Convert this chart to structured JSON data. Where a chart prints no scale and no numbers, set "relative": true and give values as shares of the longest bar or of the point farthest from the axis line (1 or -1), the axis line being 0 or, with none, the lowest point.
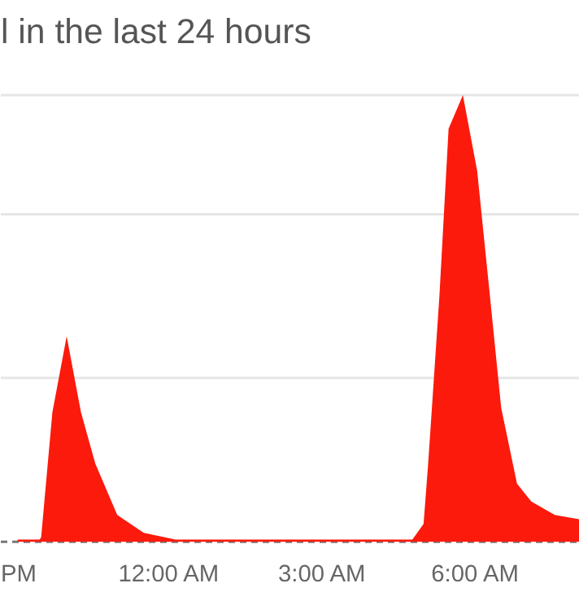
{
  "chart_data": {
    "type": "area",
    "title": "l in the last 24 hours",
    "relative": true,
    "x": [
      -2.97,
      -2.54,
      -2.51,
      -2.29,
      -2.01,
      -1.73,
      -1.45,
      -1.02,
      -0.5,
      0.12,
      4.76,
      4.98,
      5.07,
      5.29,
      5.47,
      5.75,
      6.03,
      6.28,
      6.5,
      6.81,
      7.09,
      7.55,
      8.04
    ],
    "series": [
      {
        "color": "#fc1a0c",
        "values": [
          0.005,
          0.005,
          0.01,
          0.29,
          0.46,
          0.29,
          0.175,
          0.06,
          0.02,
          0.005,
          0.005,
          0.04,
          0.175,
          0.55,
          0.925,
          1.0,
          0.83,
          0.55,
          0.3,
          0.13,
          0.09,
          0.06,
          0.05
        ]
      }
    ],
    "xlim": [
      -3.3,
      8.04
    ],
    "xticks": [
      {
        "value": -3,
        "label": "PM"
      },
      {
        "value": 0,
        "label": "12:00 AM"
      },
      {
        "value": 3,
        "label": "3:00 AM"
      },
      {
        "value": 6,
        "label": "6:00 AM"
      }
    ],
    "ref_lines": [
      {
        "axis": "y",
        "value": 0,
        "color": "#777777",
        "line_style": "dashed"
      },
      {
        "axis": "y",
        "value": 0.367,
        "color": "#e6e6e6"
      },
      {
        "axis": "y",
        "value": 0.733,
        "color": "#e6e6e6"
      },
      {
        "axis": "y",
        "value": 1.0,
        "color": "#e6e6e6"
      }
    ]
  }
}
